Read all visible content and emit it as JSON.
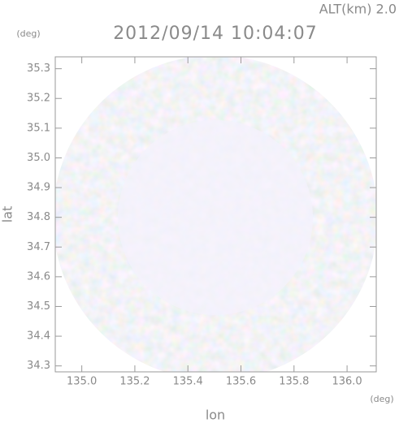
{
  "chart_data": {
    "type": "radar_image",
    "title": "2012/09/14 10:04:07",
    "subtitle": "ALT(km) 2.0",
    "x_label": "lon",
    "y_label": "lat",
    "x_unit": "(deg)",
    "y_unit": "(deg)",
    "xlim": [
      134.9,
      136.11
    ],
    "ylim": [
      34.28,
      35.34
    ],
    "xticks": [
      {
        "value": 135.0,
        "label": "135.0"
      },
      135.2,
      135.4,
      135.6,
      135.8,
      {
        "value": 136.0,
        "label": "136.0"
      }
    ],
    "yticks": [
      34.3,
      34.4,
      34.5,
      34.6,
      34.7,
      34.8,
      34.9,
      {
        "value": 35.0,
        "label": "35.0"
      },
      35.1,
      35.2,
      35.3
    ]
  }
}
